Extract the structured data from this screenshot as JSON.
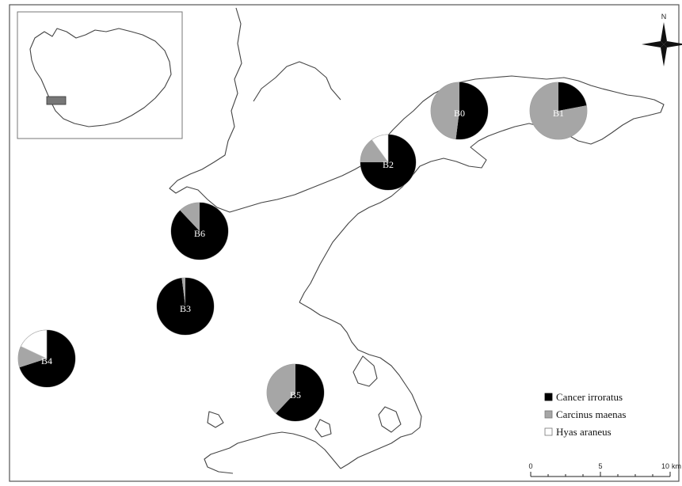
{
  "map": {
    "stations": [
      {
        "id": "B0",
        "label": "B0",
        "shares": [
          0.52,
          0.48,
          0.0
        ]
      },
      {
        "id": "B1",
        "label": "B1",
        "shares": [
          0.22,
          0.78,
          0.0
        ]
      },
      {
        "id": "B2",
        "label": "B2",
        "shares": [
          0.75,
          0.15,
          0.1
        ]
      },
      {
        "id": "B6",
        "label": "B6",
        "shares": [
          0.88,
          0.12,
          0.0
        ]
      },
      {
        "id": "B3",
        "label": "B3",
        "shares": [
          0.98,
          0.02,
          0.0
        ]
      },
      {
        "id": "B4",
        "label": "B4",
        "shares": [
          0.7,
          0.12,
          0.18
        ]
      },
      {
        "id": "B5",
        "label": "B5",
        "shares": [
          0.62,
          0.38,
          0.0
        ]
      }
    ],
    "legend": [
      {
        "label": "Cancer irroratus",
        "color": "#000000"
      },
      {
        "label": "Carcinus maenas",
        "color": "#a6a6a6"
      },
      {
        "label": "Hyas araneus",
        "color": "#ffffff"
      }
    ],
    "scale": {
      "ticks": [
        "0",
        "5",
        "10"
      ],
      "unit": "km"
    },
    "north_label": "N",
    "colors": {
      "coastline": "#444444",
      "background": "#ffffff"
    }
  }
}
